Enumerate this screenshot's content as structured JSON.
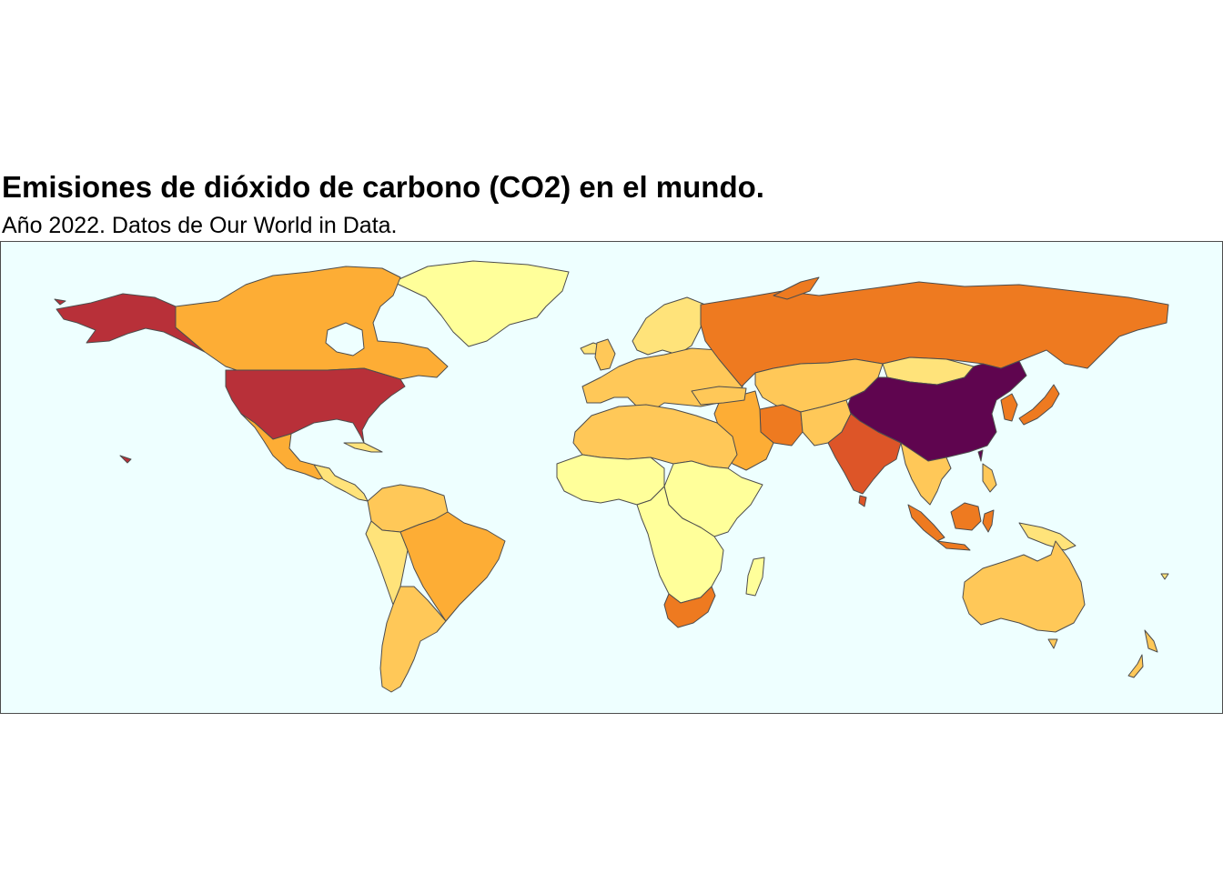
{
  "title": "Emisiones de dióxido de carbono (CO2) en el mundo.",
  "subtitle": "Año 2022. Datos de Our World in Data.",
  "map": {
    "ocean_color": "#eeffff",
    "border_color": "#4d4d4d",
    "color_scale": [
      "#ffff9a",
      "#ffe37a",
      "#ffc858",
      "#fdad35",
      "#ee7a20",
      "#dd5528",
      "#b83039",
      "#5f054f"
    ],
    "regions": [
      {
        "name": "greenland",
        "color": "#ffff9a"
      },
      {
        "name": "alaska",
        "color": "#b83039"
      },
      {
        "name": "canada",
        "color": "#fdad35"
      },
      {
        "name": "united-states",
        "color": "#b83039"
      },
      {
        "name": "mexico",
        "color": "#fdad35"
      },
      {
        "name": "central-america",
        "color": "#ffe37a"
      },
      {
        "name": "colombia-venezuela",
        "color": "#ffc858"
      },
      {
        "name": "peru-andes",
        "color": "#ffe37a"
      },
      {
        "name": "brazil",
        "color": "#fdad35"
      },
      {
        "name": "argentina-chile",
        "color": "#ffc858"
      },
      {
        "name": "europe-west",
        "color": "#ffc858"
      },
      {
        "name": "scandinavia",
        "color": "#ffe37a"
      },
      {
        "name": "russia",
        "color": "#ee7a20"
      },
      {
        "name": "central-asia",
        "color": "#ffc858"
      },
      {
        "name": "mongolia",
        "color": "#ffe37a"
      },
      {
        "name": "china",
        "color": "#5f054f"
      },
      {
        "name": "india",
        "color": "#dd5528"
      },
      {
        "name": "middle-east",
        "color": "#fdad35"
      },
      {
        "name": "iran",
        "color": "#ee7a20"
      },
      {
        "name": "japan",
        "color": "#ee7a20"
      },
      {
        "name": "korea",
        "color": "#ee7a20"
      },
      {
        "name": "north-africa",
        "color": "#ffc858"
      },
      {
        "name": "west-africa",
        "color": "#ffff9a"
      },
      {
        "name": "east-africa",
        "color": "#ffff9a"
      },
      {
        "name": "southern-africa",
        "color": "#ffff9a"
      },
      {
        "name": "south-africa",
        "color": "#ee7a20"
      },
      {
        "name": "madagascar",
        "color": "#ffff9a"
      },
      {
        "name": "southeast-asia",
        "color": "#ffc858"
      },
      {
        "name": "indonesia",
        "color": "#ee7a20"
      },
      {
        "name": "papua",
        "color": "#ffe37a"
      },
      {
        "name": "australia",
        "color": "#ffc858"
      },
      {
        "name": "new-zealand",
        "color": "#ffc858"
      }
    ]
  }
}
